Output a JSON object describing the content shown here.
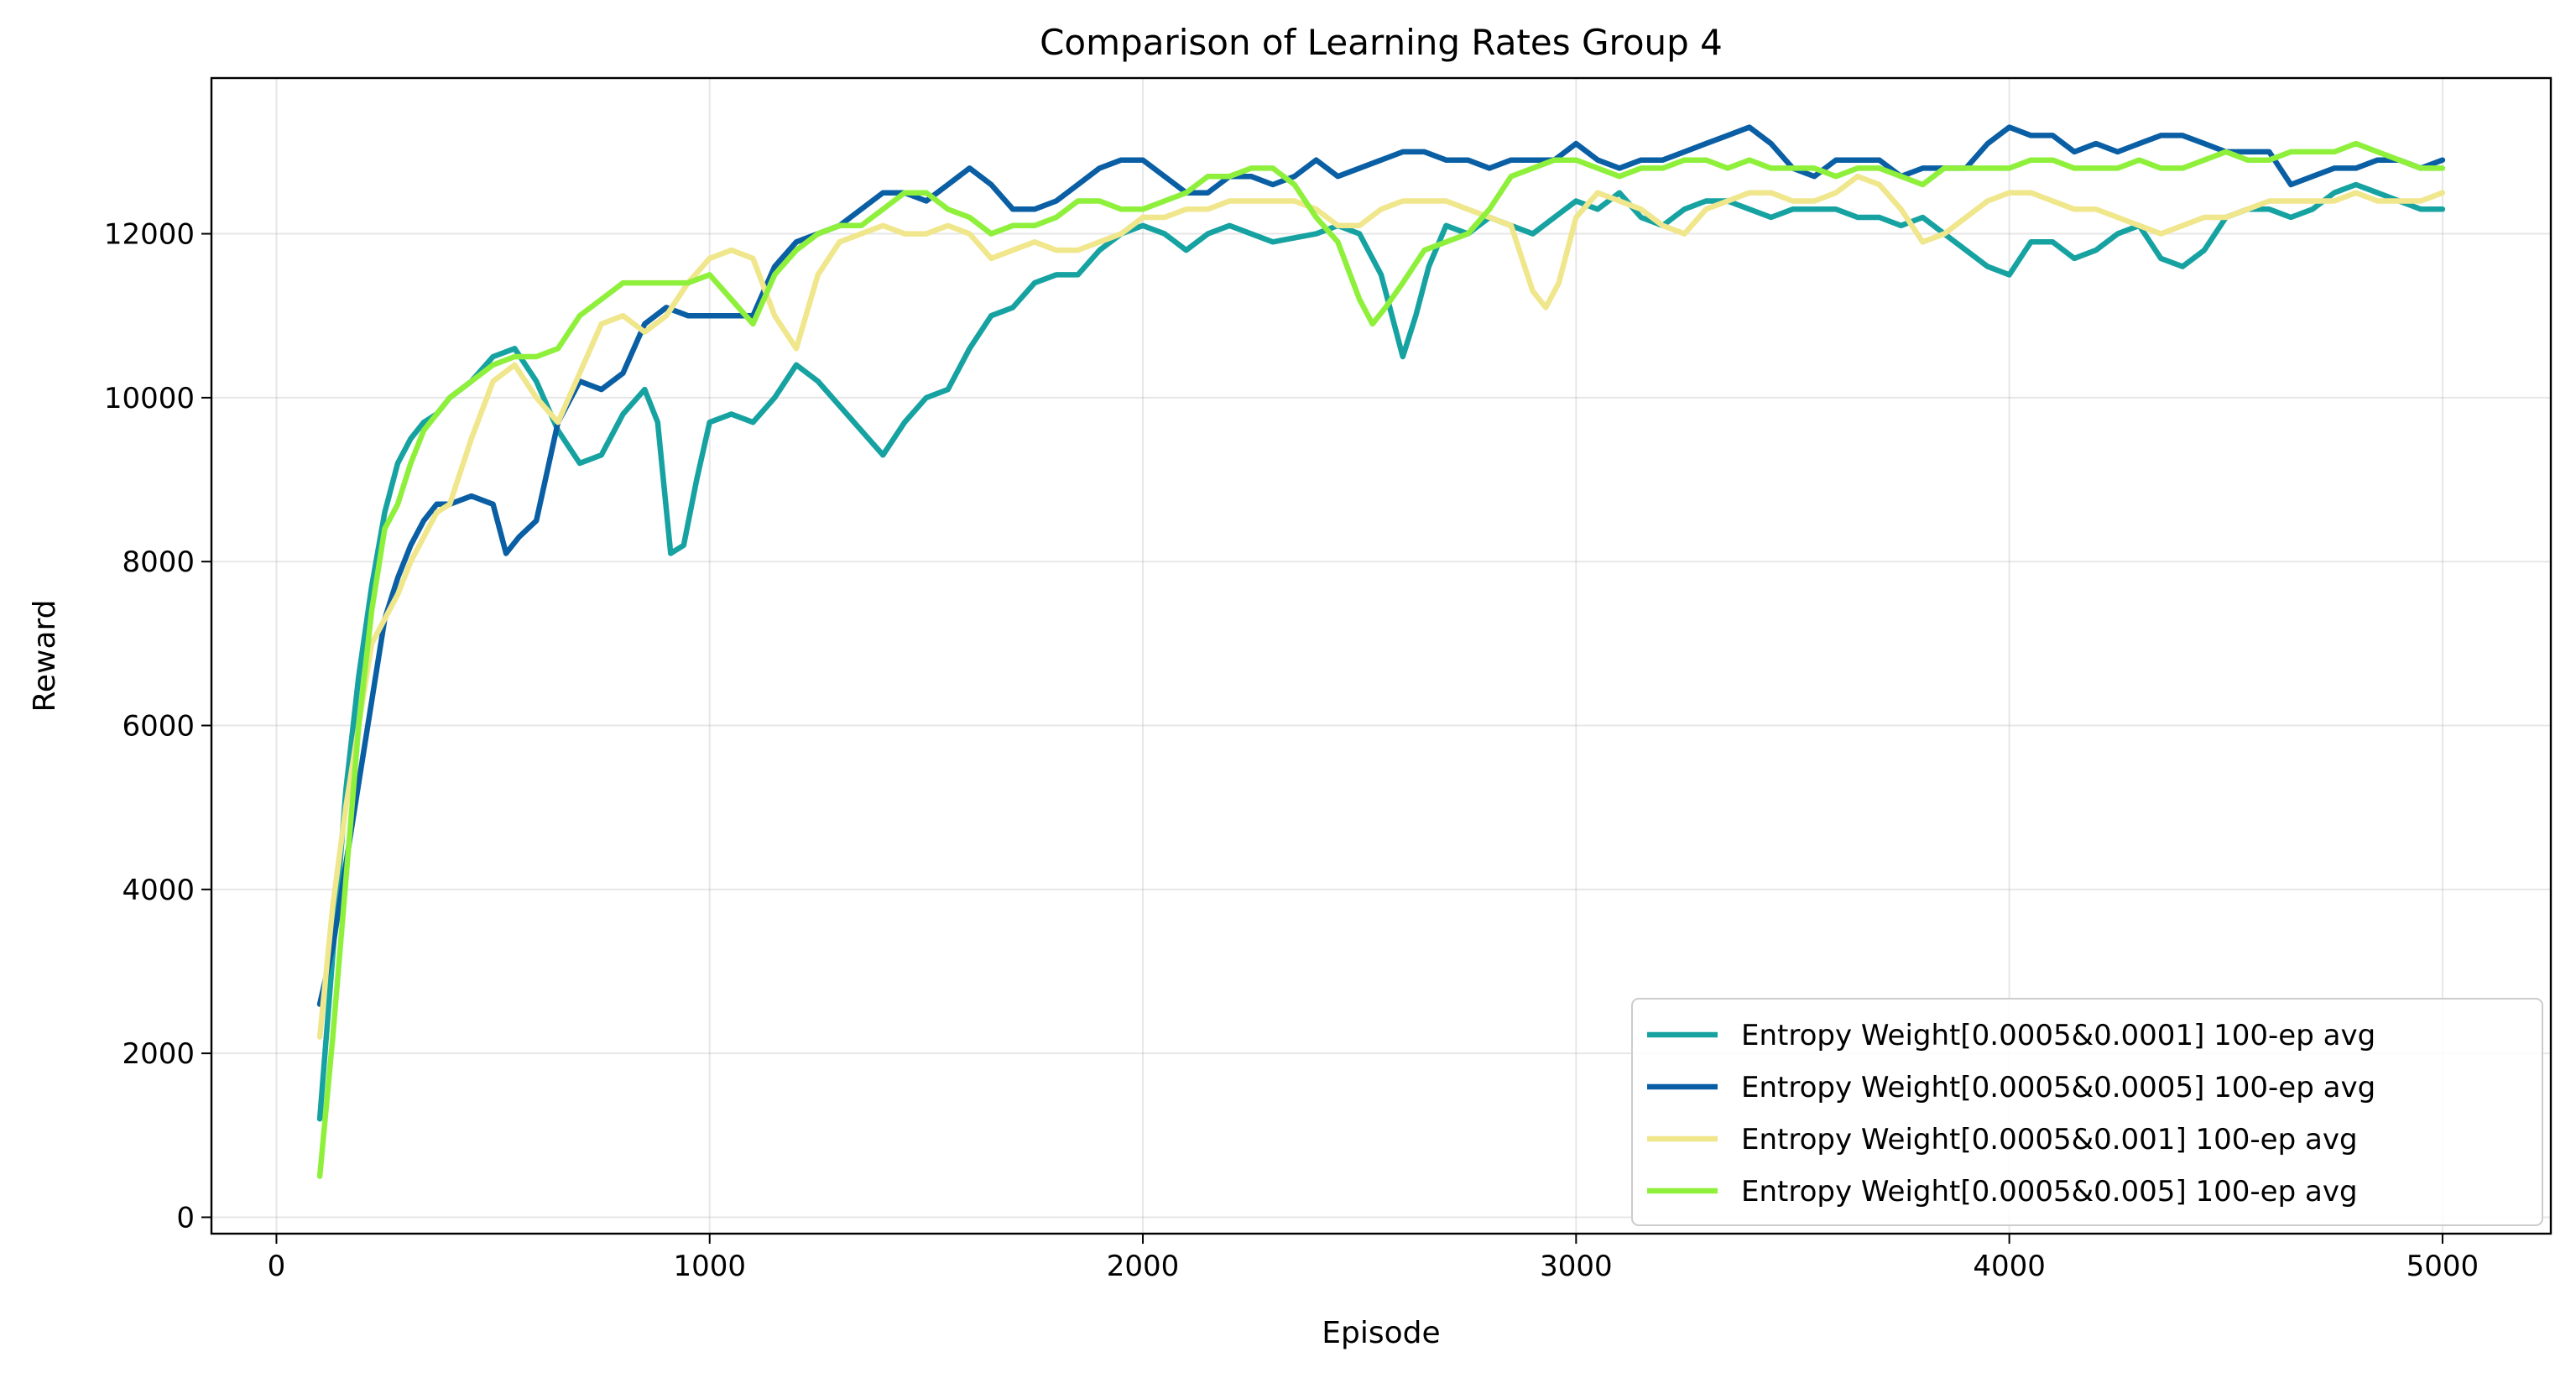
{
  "chart_data": {
    "type": "line",
    "title": "Comparison of Learning Rates Group 4",
    "xlabel": "Episode",
    "ylabel": "Reward",
    "xlim": [
      -150,
      5250
    ],
    "ylim": [
      -200,
      13900
    ],
    "xticks": [
      0,
      1000,
      2000,
      3000,
      4000,
      5000
    ],
    "yticks": [
      0,
      2000,
      4000,
      6000,
      8000,
      10000,
      12000
    ],
    "grid": true,
    "legend_position": "lower-right",
    "series": [
      {
        "name": "Entropy Weight[0.0005&0.0001] 100-ep avg",
        "color": "#17a2a2",
        "x": [
          100,
          130,
          160,
          190,
          220,
          250,
          280,
          310,
          340,
          370,
          400,
          450,
          500,
          550,
          600,
          650,
          700,
          750,
          800,
          850,
          880,
          910,
          940,
          970,
          1000,
          1050,
          1100,
          1150,
          1200,
          1250,
          1300,
          1350,
          1400,
          1450,
          1500,
          1550,
          1600,
          1650,
          1700,
          1750,
          1800,
          1850,
          1900,
          1950,
          2000,
          2050,
          2100,
          2150,
          2200,
          2300,
          2400,
          2450,
          2500,
          2550,
          2600,
          2630,
          2660,
          2700,
          2750,
          2800,
          2850,
          2900,
          2950,
          3000,
          3050,
          3100,
          3150,
          3200,
          3250,
          3300,
          3350,
          3400,
          3450,
          3500,
          3550,
          3600,
          3650,
          3700,
          3750,
          3800,
          3850,
          3900,
          3950,
          4000,
          4050,
          4100,
          4150,
          4200,
          4250,
          4300,
          4350,
          4400,
          4450,
          4500,
          4550,
          4600,
          4650,
          4700,
          4750,
          4800,
          4850,
          4900,
          4950,
          5000
        ],
        "y": [
          1200,
          3200,
          5200,
          6600,
          7700,
          8600,
          9200,
          9500,
          9700,
          9800,
          10000,
          10200,
          10500,
          10600,
          10200,
          9600,
          9200,
          9300,
          9800,
          10100,
          9700,
          8100,
          8200,
          9000,
          9700,
          9800,
          9700,
          10000,
          10400,
          10200,
          9900,
          9600,
          9300,
          9700,
          10000,
          10100,
          10600,
          11000,
          11100,
          11400,
          11500,
          11500,
          11800,
          12000,
          12100,
          12000,
          11800,
          12000,
          12100,
          11900,
          12000,
          12100,
          12000,
          11500,
          10500,
          11000,
          11600,
          12100,
          12000,
          12200,
          12100,
          12000,
          12200,
          12400,
          12300,
          12500,
          12200,
          12100,
          12300,
          12400,
          12400,
          12300,
          12200,
          12300,
          12300,
          12300,
          12200,
          12200,
          12100,
          12200,
          12000,
          11800,
          11600,
          11500,
          11900,
          11900,
          11700,
          11800,
          12000,
          12100,
          11700,
          11600,
          11800,
          12200,
          12300,
          12300,
          12200,
          12300,
          12500,
          12600,
          12500,
          12400,
          12300,
          12300
        ]
      },
      {
        "name": "Entropy Weight[0.0005&0.0005] 100-ep avg",
        "color": "#0a5fa4",
        "x": [
          100,
          130,
          160,
          190,
          220,
          250,
          280,
          310,
          340,
          370,
          400,
          450,
          500,
          530,
          560,
          600,
          650,
          700,
          750,
          800,
          850,
          900,
          950,
          1000,
          1050,
          1100,
          1150,
          1200,
          1250,
          1300,
          1350,
          1400,
          1450,
          1500,
          1550,
          1600,
          1650,
          1700,
          1750,
          1800,
          1850,
          1900,
          1950,
          2000,
          2050,
          2100,
          2150,
          2200,
          2250,
          2300,
          2350,
          2400,
          2450,
          2500,
          2550,
          2600,
          2650,
          2700,
          2750,
          2800,
          2850,
          2900,
          2950,
          3000,
          3050,
          3100,
          3150,
          3200,
          3250,
          3300,
          3350,
          3400,
          3450,
          3500,
          3550,
          3600,
          3650,
          3700,
          3750,
          3800,
          3850,
          3900,
          3950,
          4000,
          4050,
          4100,
          4150,
          4200,
          4250,
          4300,
          4350,
          4400,
          4450,
          4500,
          4550,
          4600,
          4650,
          4700,
          4750,
          4800,
          4850,
          4900,
          4950,
          5000
        ],
        "y": [
          2600,
          3300,
          4300,
          5300,
          6300,
          7300,
          7800,
          8200,
          8500,
          8700,
          8700,
          8800,
          8700,
          8100,
          8300,
          8500,
          9700,
          10200,
          10100,
          10300,
          10900,
          11100,
          11000,
          11000,
          11000,
          11000,
          11600,
          11900,
          12000,
          12100,
          12300,
          12500,
          12500,
          12400,
          12600,
          12800,
          12600,
          12300,
          12300,
          12400,
          12600,
          12800,
          12900,
          12900,
          12700,
          12500,
          12500,
          12700,
          12700,
          12600,
          12700,
          12900,
          12700,
          12800,
          12900,
          13000,
          13000,
          12900,
          12900,
          12800,
          12900,
          12900,
          12900,
          13100,
          12900,
          12800,
          12900,
          12900,
          13000,
          13100,
          13200,
          13300,
          13100,
          12800,
          12700,
          12900,
          12900,
          12900,
          12700,
          12800,
          12800,
          12800,
          13100,
          13300,
          13200,
          13200,
          13000,
          13100,
          13000,
          13100,
          13200,
          13200,
          13100,
          13000,
          13000,
          13000,
          12600,
          12700,
          12800,
          12800,
          12900,
          12900,
          12800,
          12900
        ]
      },
      {
        "name": "Entropy Weight[0.0005&0.001] 100-ep avg",
        "color": "#f0e68c",
        "x": [
          100,
          130,
          160,
          190,
          220,
          250,
          280,
          310,
          340,
          370,
          400,
          450,
          500,
          550,
          600,
          650,
          700,
          750,
          800,
          850,
          900,
          950,
          1000,
          1050,
          1100,
          1150,
          1200,
          1250,
          1300,
          1350,
          1400,
          1450,
          1500,
          1550,
          1600,
          1650,
          1700,
          1750,
          1800,
          1850,
          1900,
          1950,
          2000,
          2050,
          2100,
          2150,
          2200,
          2250,
          2300,
          2350,
          2400,
          2450,
          2500,
          2550,
          2600,
          2650,
          2700,
          2750,
          2800,
          2850,
          2900,
          2930,
          2960,
          3000,
          3050,
          3100,
          3150,
          3200,
          3250,
          3300,
          3350,
          3400,
          3450,
          3500,
          3550,
          3600,
          3650,
          3700,
          3750,
          3800,
          3850,
          3900,
          3950,
          4000,
          4050,
          4100,
          4150,
          4200,
          4250,
          4300,
          4350,
          4400,
          4450,
          4500,
          4550,
          4600,
          4650,
          4700,
          4750,
          4800,
          4850,
          4900,
          4950,
          5000
        ],
        "y": [
          2200,
          3800,
          5000,
          6000,
          7000,
          7300,
          7600,
          8000,
          8300,
          8600,
          8700,
          9500,
          10200,
          10400,
          10000,
          9700,
          10300,
          10900,
          11000,
          10800,
          11000,
          11400,
          11700,
          11800,
          11700,
          11000,
          10600,
          11500,
          11900,
          12000,
          12100,
          12000,
          12000,
          12100,
          12000,
          11700,
          11800,
          11900,
          11800,
          11800,
          11900,
          12000,
          12200,
          12200,
          12300,
          12300,
          12400,
          12400,
          12400,
          12400,
          12300,
          12100,
          12100,
          12300,
          12400,
          12400,
          12400,
          12300,
          12200,
          12100,
          11300,
          11100,
          11400,
          12200,
          12500,
          12400,
          12300,
          12100,
          12000,
          12300,
          12400,
          12500,
          12500,
          12400,
          12400,
          12500,
          12700,
          12600,
          12300,
          11900,
          12000,
          12200,
          12400,
          12500,
          12500,
          12400,
          12300,
          12300,
          12200,
          12100,
          12000,
          12100,
          12200,
          12200,
          12300,
          12400,
          12400,
          12400,
          12400,
          12500,
          12400,
          12400,
          12400,
          12500
        ]
      },
      {
        "name": "Entropy Weight[0.0005&0.005] 100-ep avg",
        "color": "#8ff03c",
        "x": [
          100,
          130,
          160,
          190,
          220,
          250,
          280,
          310,
          340,
          370,
          400,
          450,
          500,
          550,
          600,
          650,
          700,
          750,
          800,
          850,
          900,
          950,
          1000,
          1050,
          1100,
          1150,
          1200,
          1250,
          1300,
          1350,
          1400,
          1450,
          1500,
          1550,
          1600,
          1650,
          1700,
          1750,
          1800,
          1850,
          1900,
          1950,
          2000,
          2050,
          2100,
          2150,
          2200,
          2250,
          2300,
          2350,
          2400,
          2450,
          2500,
          2530,
          2560,
          2600,
          2650,
          2700,
          2750,
          2800,
          2850,
          2900,
          2950,
          3000,
          3050,
          3100,
          3150,
          3200,
          3250,
          3300,
          3350,
          3400,
          3450,
          3500,
          3550,
          3600,
          3650,
          3700,
          3750,
          3800,
          3850,
          3900,
          3950,
          4000,
          4050,
          4100,
          4150,
          4200,
          4250,
          4300,
          4350,
          4400,
          4450,
          4500,
          4550,
          4600,
          4650,
          4700,
          4750,
          4800,
          4850,
          4900,
          4950,
          5000
        ],
        "y": [
          500,
          2200,
          4100,
          6000,
          7400,
          8400,
          8700,
          9200,
          9600,
          9800,
          10000,
          10200,
          10400,
          10500,
          10500,
          10600,
          11000,
          11200,
          11400,
          11400,
          11400,
          11400,
          11500,
          11200,
          10900,
          11500,
          11800,
          12000,
          12100,
          12100,
          12300,
          12500,
          12500,
          12300,
          12200,
          12000,
          12100,
          12100,
          12200,
          12400,
          12400,
          12300,
          12300,
          12400,
          12500,
          12700,
          12700,
          12800,
          12800,
          12600,
          12200,
          11900,
          11200,
          10900,
          11100,
          11400,
          11800,
          11900,
          12000,
          12300,
          12700,
          12800,
          12900,
          12900,
          12800,
          12700,
          12800,
          12800,
          12900,
          12900,
          12800,
          12900,
          12800,
          12800,
          12800,
          12700,
          12800,
          12800,
          12700,
          12600,
          12800,
          12800,
          12800,
          12800,
          12900,
          12900,
          12800,
          12800,
          12800,
          12900,
          12800,
          12800,
          12900,
          13000,
          12900,
          12900,
          13000,
          13000,
          13000,
          13100,
          13000,
          12900,
          12800,
          12800
        ]
      }
    ]
  }
}
